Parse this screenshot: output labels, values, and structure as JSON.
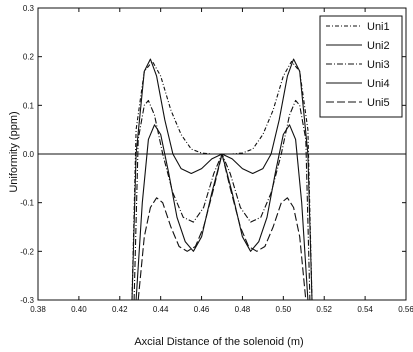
{
  "chart_data": {
    "type": "line",
    "title": "",
    "xlabel": "Axcial Distance of the solenoid (m)",
    "ylabel": "Uniformity (ppm)",
    "xlim": [
      0.38,
      0.56
    ],
    "ylim": [
      -0.3,
      0.3
    ],
    "x_ticks": [
      "0.38",
      "0.40",
      "0.42",
      "0.44",
      "0.46",
      "0.48",
      "0.50",
      "0.52",
      "0.54",
      "0.56"
    ],
    "y_ticks": [
      "-0.3",
      "-0.2",
      "-0.1",
      "0.0",
      "0.1",
      "0.2",
      "0.3"
    ],
    "reference_line_y": 0.0,
    "grid": false,
    "legend_position": "top-right",
    "series": [
      {
        "name": "Uni1",
        "x": [
          0.426,
          0.428,
          0.432,
          0.436,
          0.44,
          0.445,
          0.45,
          0.455,
          0.46,
          0.465,
          0.47,
          0.475,
          0.48,
          0.485,
          0.49,
          0.495,
          0.5,
          0.504,
          0.508,
          0.512,
          0.514
        ],
        "y": [
          -0.3,
          0.05,
          0.17,
          0.19,
          0.16,
          0.09,
          0.04,
          0.01,
          0.002,
          0.0,
          0.0,
          0.0,
          0.002,
          0.01,
          0.04,
          0.09,
          0.16,
          0.19,
          0.17,
          0.05,
          -0.3
        ]
      },
      {
        "name": "Uni2",
        "x": [
          0.426,
          0.428,
          0.432,
          0.435,
          0.438,
          0.442,
          0.446,
          0.45,
          0.455,
          0.46,
          0.465,
          0.47,
          0.475,
          0.48,
          0.485,
          0.49,
          0.494,
          0.498,
          0.502,
          0.505,
          0.508,
          0.512,
          0.514
        ],
        "y": [
          -0.3,
          0.0,
          0.17,
          0.195,
          0.16,
          0.07,
          0.0,
          -0.03,
          -0.04,
          -0.03,
          -0.01,
          0.0,
          -0.01,
          -0.03,
          -0.04,
          -0.03,
          0.0,
          0.07,
          0.16,
          0.195,
          0.17,
          0.0,
          -0.3
        ]
      },
      {
        "name": "Uni3",
        "x": [
          0.427,
          0.429,
          0.432,
          0.434,
          0.437,
          0.441,
          0.446,
          0.451,
          0.456,
          0.461,
          0.466,
          0.47,
          0.474,
          0.479,
          0.484,
          0.489,
          0.494,
          0.499,
          0.503,
          0.506,
          0.508,
          0.511,
          0.513
        ],
        "y": [
          -0.3,
          0.03,
          0.1,
          0.11,
          0.08,
          0.0,
          -0.08,
          -0.13,
          -0.14,
          -0.11,
          -0.04,
          0.0,
          -0.04,
          -0.11,
          -0.14,
          -0.13,
          -0.08,
          0.0,
          0.08,
          0.11,
          0.1,
          0.03,
          -0.3
        ]
      },
      {
        "name": "Uni4",
        "x": [
          0.428,
          0.431,
          0.434,
          0.437,
          0.44,
          0.444,
          0.448,
          0.452,
          0.456,
          0.46,
          0.465,
          0.47,
          0.475,
          0.48,
          0.484,
          0.488,
          0.492,
          0.496,
          0.5,
          0.503,
          0.506,
          0.509,
          0.512
        ],
        "y": [
          -0.3,
          -0.1,
          0.03,
          0.06,
          0.04,
          -0.04,
          -0.13,
          -0.18,
          -0.2,
          -0.17,
          -0.08,
          0.0,
          -0.08,
          -0.17,
          -0.2,
          -0.18,
          -0.13,
          -0.04,
          0.04,
          0.06,
          0.03,
          -0.1,
          -0.3
        ]
      },
      {
        "name": "Uni5",
        "x": [
          0.429,
          0.432,
          0.435,
          0.438,
          0.441,
          0.445,
          0.449,
          0.453,
          0.457,
          0.461,
          0.466,
          0.47,
          0.474,
          0.479,
          0.483,
          0.487,
          0.491,
          0.495,
          0.499,
          0.502,
          0.505,
          0.508,
          0.511
        ],
        "y": [
          -0.3,
          -0.17,
          -0.11,
          -0.09,
          -0.1,
          -0.15,
          -0.19,
          -0.2,
          -0.19,
          -0.15,
          -0.07,
          0.0,
          -0.07,
          -0.15,
          -0.19,
          -0.2,
          -0.19,
          -0.15,
          -0.1,
          -0.09,
          -0.11,
          -0.17,
          -0.3
        ]
      }
    ]
  },
  "style": {
    "line_color": "#111111",
    "axis_color": "#111111",
    "background": "#ffffff"
  }
}
